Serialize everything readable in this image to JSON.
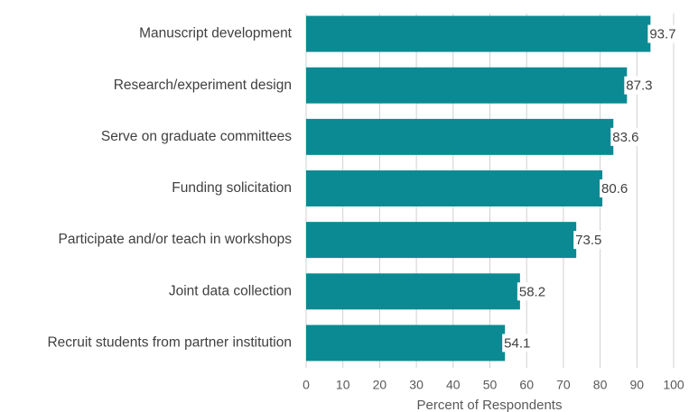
{
  "chart_data": {
    "type": "barh",
    "categories": [
      "Manuscript development",
      "Research/experiment design",
      "Serve on graduate committees",
      "Funding solicitation",
      "Participate and/or teach in workshops",
      "Joint data collection",
      "Recruit students from partner institution"
    ],
    "values": [
      93.7,
      87.3,
      83.6,
      80.6,
      73.5,
      58.2,
      54.1
    ],
    "color": "#0b8a93",
    "x_label": "Percent of Respondents",
    "xlim": [
      0,
      100
    ],
    "xticks": [
      0,
      10,
      20,
      30,
      40,
      50,
      60,
      70,
      80,
      90,
      100
    ],
    "grid": true
  }
}
